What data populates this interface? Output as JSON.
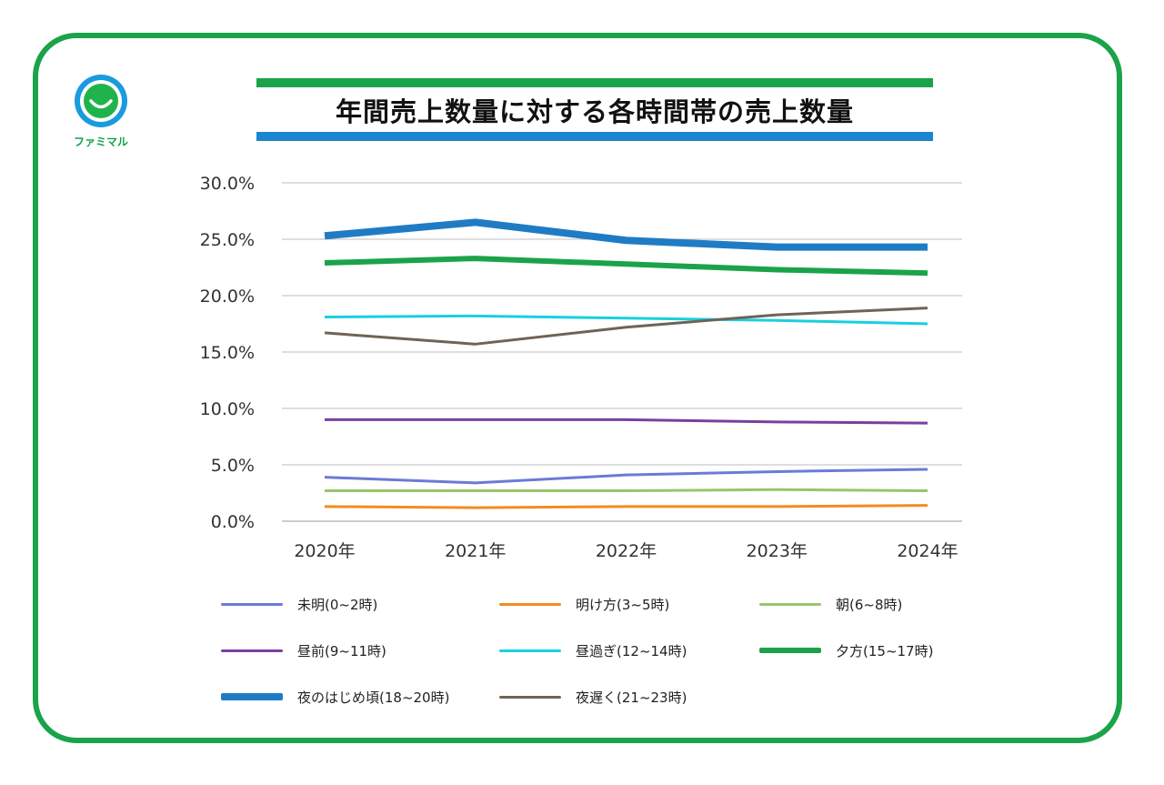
{
  "logo": {
    "text": "ファミマル",
    "icon": "smile-icon",
    "colors": {
      "ring": "#1a9be0",
      "face": "#21b34b"
    }
  },
  "accent_colors": {
    "frame": "#1aa34a",
    "title_bar_top": "#1aa34a",
    "title_bar_bottom": "#1b86cf"
  },
  "chart_data": {
    "type": "line",
    "title": "年間売上数量に対する各時間帯の売上数量",
    "categories": [
      "2020年",
      "2021年",
      "2022年",
      "2023年",
      "2024年"
    ],
    "ylim": [
      0,
      30
    ],
    "yticks": [
      "0.0%",
      "5.0%",
      "10.0%",
      "15.0%",
      "20.0%",
      "25.0%",
      "30.0%"
    ],
    "grid": "horizontal",
    "legend_position": "bottom",
    "series": [
      {
        "name": "未明(0~2時)",
        "color": "#6b7bd6",
        "width": 3,
        "values": [
          3.9,
          3.4,
          4.1,
          4.4,
          4.6
        ]
      },
      {
        "name": "明け方(3~5時)",
        "color": "#f28c1e",
        "width": 3,
        "values": [
          1.3,
          1.2,
          1.3,
          1.3,
          1.4
        ]
      },
      {
        "name": "朝(6~8時)",
        "color": "#9bc46a",
        "width": 3,
        "values": [
          2.7,
          2.7,
          2.7,
          2.8,
          2.7
        ]
      },
      {
        "name": "昼前(9~11時)",
        "color": "#7a3fa0",
        "width": 3,
        "values": [
          9.0,
          9.0,
          9.0,
          8.8,
          8.7
        ]
      },
      {
        "name": "昼過ぎ(12~14時)",
        "color": "#19cfe0",
        "width": 3,
        "values": [
          18.1,
          18.2,
          18.0,
          17.8,
          17.5
        ]
      },
      {
        "name": "夕方(15~17時)",
        "color": "#1aa34a",
        "width": 6,
        "values": [
          22.9,
          23.3,
          22.8,
          22.3,
          22.0
        ]
      },
      {
        "name": "夜のはじめ頃(18~20時)",
        "color": "#1f7cc4",
        "width": 8,
        "values": [
          25.3,
          26.5,
          24.9,
          24.3,
          24.3
        ]
      },
      {
        "name": "夜遅く(21~23時)",
        "color": "#6e6358",
        "width": 3,
        "values": [
          16.7,
          15.7,
          17.2,
          18.3,
          18.9
        ]
      }
    ]
  }
}
